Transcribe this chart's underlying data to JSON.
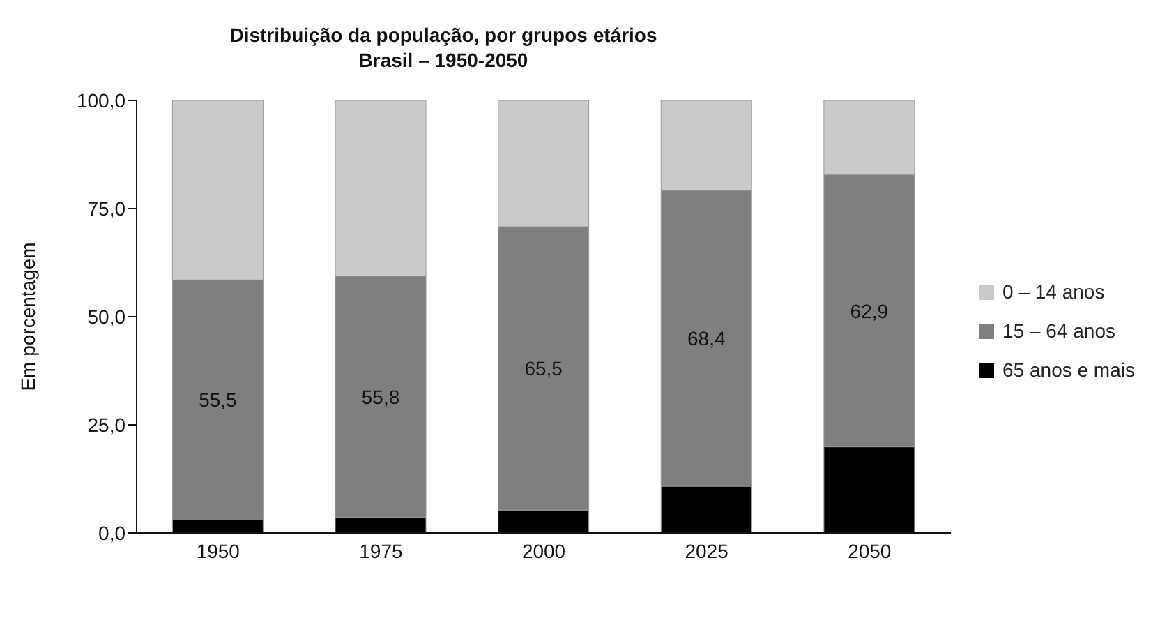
{
  "chart_data": {
    "type": "bar",
    "title": "Distribuição da população, por grupos etários",
    "subtitle": "Brasil – 1950-2050",
    "ylabel": "Em porcentagem",
    "categories": [
      "1950",
      "1975",
      "2000",
      "2025",
      "2050"
    ],
    "stacked": true,
    "series": [
      {
        "name": "65 anos e mais",
        "color": "#000000",
        "values": [
          3.0,
          3.6,
          5.3,
          10.8,
          19.9
        ]
      },
      {
        "name": "15 – 64 anos",
        "color": "#7f7f7f",
        "values": [
          55.5,
          55.8,
          65.5,
          68.4,
          62.9
        ],
        "value_labels": [
          "55,5",
          "55,8",
          "65,5",
          "68,4",
          "62,9"
        ]
      },
      {
        "name": "0 – 14 anos",
        "color": "#cacaca",
        "values": [
          41.5,
          40.6,
          29.2,
          20.8,
          17.2
        ]
      }
    ],
    "ylim": [
      0,
      100
    ],
    "yticks": [
      {
        "value": 0,
        "label": "0,0"
      },
      {
        "value": 25,
        "label": "25,0"
      },
      {
        "value": 50,
        "label": "50,0"
      },
      {
        "value": 75,
        "label": "75,0"
      },
      {
        "value": 100,
        "label": "100,0"
      }
    ],
    "grid": false,
    "legend": "right"
  }
}
